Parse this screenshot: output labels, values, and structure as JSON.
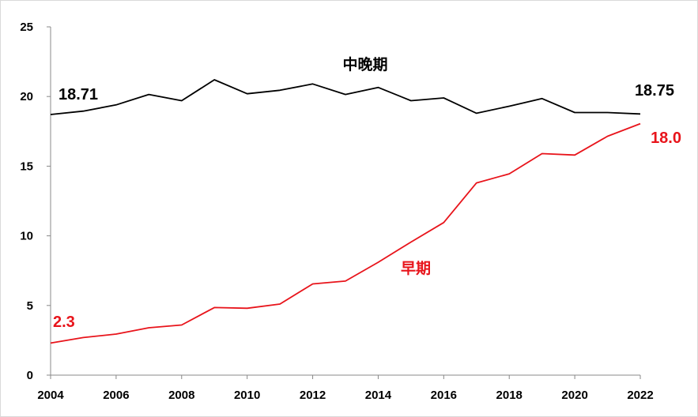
{
  "chart_data": {
    "type": "line",
    "title": "",
    "xlabel": "",
    "ylabel": "",
    "xlim": [
      2004,
      2022
    ],
    "ylim": [
      0,
      25
    ],
    "x_ticks": [
      "2004",
      "2006",
      "2008",
      "2010",
      "2012",
      "2014",
      "2016",
      "2018",
      "2020",
      "2022"
    ],
    "y_ticks": [
      "0",
      "5",
      "10",
      "15",
      "20",
      "25"
    ],
    "grid": false,
    "x": [
      2004,
      2005,
      2006,
      2007,
      2008,
      2009,
      2010,
      2011,
      2012,
      2013,
      2014,
      2015,
      2016,
      2017,
      2018,
      2019,
      2020,
      2021,
      2022
    ],
    "series": [
      {
        "name": "中晚期",
        "color": "#000000",
        "values": [
          18.71,
          18.95,
          19.4,
          20.15,
          19.7,
          21.2,
          20.2,
          20.45,
          20.9,
          20.15,
          20.65,
          19.7,
          19.9,
          18.8,
          19.3,
          19.85,
          18.85,
          18.85,
          18.75
        ],
        "start_label": "18.71",
        "end_label": "18.75"
      },
      {
        "name": "早期",
        "color": "#e8141b",
        "values": [
          2.3,
          2.7,
          2.95,
          3.4,
          3.6,
          4.85,
          4.8,
          5.1,
          6.55,
          6.75,
          8.1,
          9.55,
          10.95,
          13.8,
          14.45,
          15.9,
          15.8,
          17.15,
          18.05
        ],
        "start_label": "2.3",
        "end_label": "18.0"
      }
    ]
  }
}
